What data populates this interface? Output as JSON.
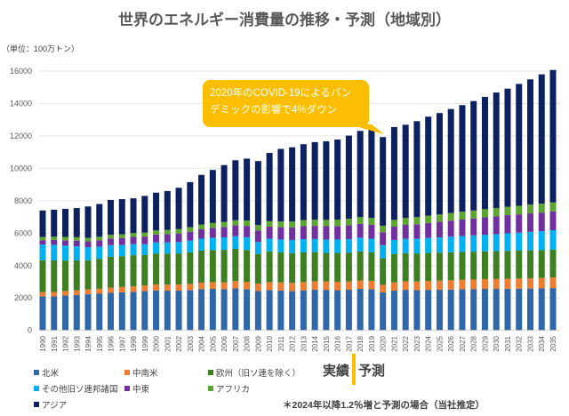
{
  "chart_data": {
    "type": "bar",
    "stacked": true,
    "title": "世界のエネルギー消費量の推移・予測（地域別）",
    "unit_label": "（単位：100万トン）",
    "ylim": [
      0,
      16000
    ],
    "yticks": [
      0,
      2000,
      4000,
      6000,
      8000,
      10000,
      12000,
      14000,
      16000
    ],
    "grid": true,
    "legend_position": "bottom",
    "categories": [
      "1990",
      "1991",
      "1992",
      "1993",
      "1994",
      "1995",
      "1996",
      "1997",
      "1998",
      "1999",
      "2000",
      "2001",
      "2002",
      "2003",
      "2004",
      "2005",
      "2006",
      "2007",
      "2008",
      "2009",
      "2010",
      "2011",
      "2012",
      "2013",
      "2014",
      "2015",
      "2016",
      "2017",
      "2018",
      "2019",
      "2020",
      "2021",
      "2022",
      "2023",
      "2024",
      "2025",
      "2026",
      "2027",
      "2028",
      "2029",
      "2030",
      "2031",
      "2032",
      "2033",
      "2034",
      "2035"
    ],
    "series": [
      {
        "name": "北米",
        "color": "#2F67A8",
        "values": [
          2100,
          2100,
          2150,
          2180,
          2230,
          2260,
          2320,
          2350,
          2380,
          2420,
          2470,
          2450,
          2460,
          2490,
          2550,
          2560,
          2540,
          2590,
          2540,
          2430,
          2490,
          2460,
          2420,
          2470,
          2510,
          2500,
          2480,
          2510,
          2560,
          2540,
          2340,
          2450,
          2500,
          2480,
          2500,
          2510,
          2520,
          2540,
          2550,
          2560,
          2560,
          2570,
          2570,
          2580,
          2590,
          2610
        ]
      },
      {
        "name": "中南米",
        "color": "#ED7D31",
        "values": [
          260,
          270,
          280,
          290,
          300,
          310,
          320,
          330,
          340,
          350,
          360,
          370,
          370,
          380,
          400,
          420,
          430,
          450,
          460,
          460,
          490,
          500,
          510,
          510,
          520,
          520,
          520,
          520,
          520,
          520,
          470,
          510,
          530,
          540,
          550,
          560,
          570,
          580,
          590,
          600,
          610,
          620,
          630,
          640,
          650,
          660
        ]
      },
      {
        "name": "欧州（旧ソ連を除く）",
        "color": "#3E7F22",
        "values": [
          1970,
          1950,
          1880,
          1850,
          1800,
          1850,
          1900,
          1900,
          1920,
          1880,
          1920,
          1920,
          1920,
          1950,
          1970,
          1980,
          2000,
          1990,
          1960,
          1830,
          1900,
          1850,
          1840,
          1830,
          1800,
          1760,
          1780,
          1770,
          1790,
          1760,
          1640,
          1760,
          1740,
          1730,
          1730,
          1730,
          1730,
          1720,
          1720,
          1720,
          1720,
          1720,
          1720,
          1720,
          1710,
          1710
        ]
      },
      {
        "name": "その他旧ソ連邦諸国",
        "color": "#00B0F0",
        "values": [
          970,
          960,
          920,
          870,
          800,
          750,
          720,
          690,
          680,
          670,
          680,
          690,
          700,
          720,
          740,
          760,
          770,
          780,
          790,
          740,
          780,
          800,
          810,
          820,
          810,
          820,
          830,
          830,
          850,
          840,
          810,
          860,
          880,
          900,
          920,
          940,
          960,
          980,
          1000,
          1020,
          1050,
          1080,
          1110,
          1140,
          1170,
          1200
        ]
      },
      {
        "name": "中東",
        "color": "#7030A0",
        "values": [
          270,
          300,
          330,
          350,
          370,
          390,
          410,
          430,
          450,
          470,
          490,
          510,
          530,
          550,
          580,
          610,
          640,
          670,
          700,
          710,
          740,
          760,
          780,
          800,
          810,
          830,
          830,
          850,
          860,
          860,
          800,
          820,
          860,
          900,
          930,
          960,
          990,
          1020,
          1050,
          1080,
          1100,
          1120,
          1130,
          1140,
          1150,
          1160
        ]
      },
      {
        "name": "アフリカ",
        "color": "#5BA531",
        "values": [
          200,
          200,
          210,
          210,
          210,
          220,
          230,
          230,
          240,
          240,
          250,
          260,
          270,
          280,
          290,
          300,
          310,
          320,
          330,
          330,
          340,
          350,
          360,
          370,
          380,
          390,
          400,
          410,
          410,
          420,
          400,
          420,
          430,
          440,
          450,
          460,
          470,
          480,
          490,
          500,
          510,
          520,
          530,
          540,
          550,
          560
        ]
      },
      {
        "name": "アジア",
        "color": "#0D2060",
        "values": [
          1630,
          1670,
          1730,
          1800,
          1940,
          2020,
          2150,
          2170,
          2140,
          2270,
          2330,
          2400,
          2550,
          2780,
          3070,
          3270,
          3510,
          3700,
          3820,
          3950,
          4210,
          4480,
          4580,
          4690,
          4790,
          4850,
          4940,
          5130,
          5320,
          5500,
          5470,
          5730,
          5750,
          5920,
          6110,
          6250,
          6420,
          6580,
          6750,
          6930,
          7130,
          7290,
          7520,
          7730,
          7980,
          8170
        ]
      }
    ],
    "annotation": "2020年のCOVID-19によるパンデミックの影響で4%ダウン",
    "annotation_lines": [
      "2020年のCOVID-19によるパン",
      "デミックの影響で4%ダウン"
    ],
    "divider_labels": {
      "actual": "実績",
      "forecast": "予測"
    },
    "footnote": "＊2024年以降1.2％増と予測の場合（当社推定）",
    "colors": {
      "callout": "#FBBE00",
      "divider": "#FBBE00"
    }
  }
}
